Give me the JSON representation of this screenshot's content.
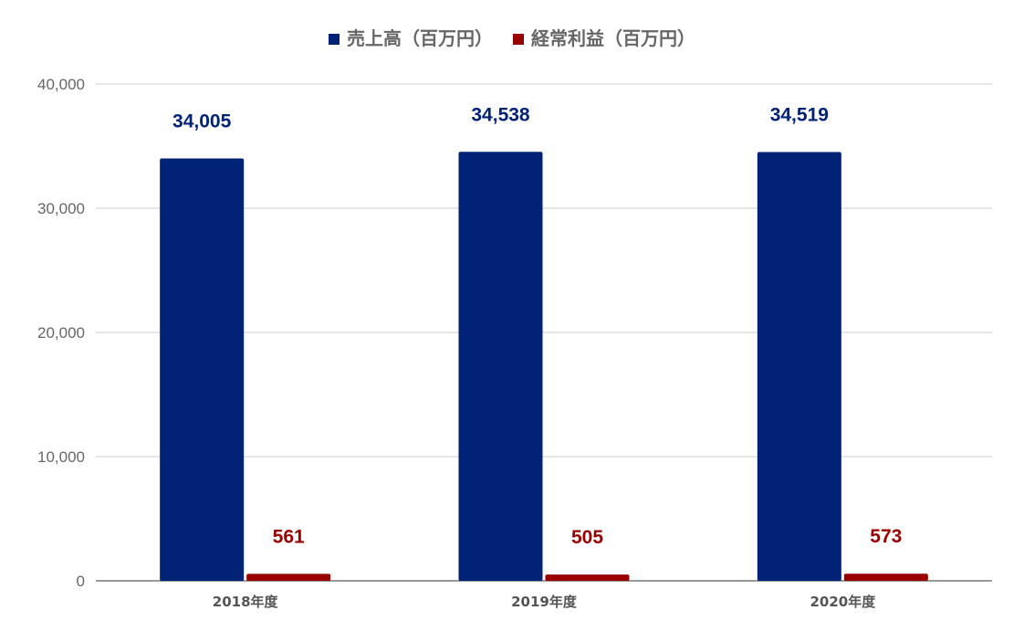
{
  "chart_data": {
    "type": "bar",
    "categories": [
      "2018年度",
      "2019年度",
      "2020年度"
    ],
    "series": [
      {
        "name": "売上高（百万円）",
        "color": "#002277",
        "values": [
          34005,
          34538,
          34519
        ],
        "labels": [
          "34,005",
          "34,538",
          "34,519"
        ]
      },
      {
        "name": "経常利益（百万円）",
        "color": "#990000",
        "values": [
          561,
          505,
          573
        ],
        "labels": [
          "561",
          "505",
          "573"
        ]
      }
    ],
    "ylim": [
      0,
      40000
    ],
    "yticks": [
      0,
      10000,
      20000,
      30000,
      40000
    ],
    "ytick_labels": [
      "0",
      "10,000",
      "20,000",
      "30,000",
      "40,000"
    ],
    "grid": true,
    "legend": "top-center",
    "title": "",
    "xlabel": "",
    "ylabel": ""
  }
}
